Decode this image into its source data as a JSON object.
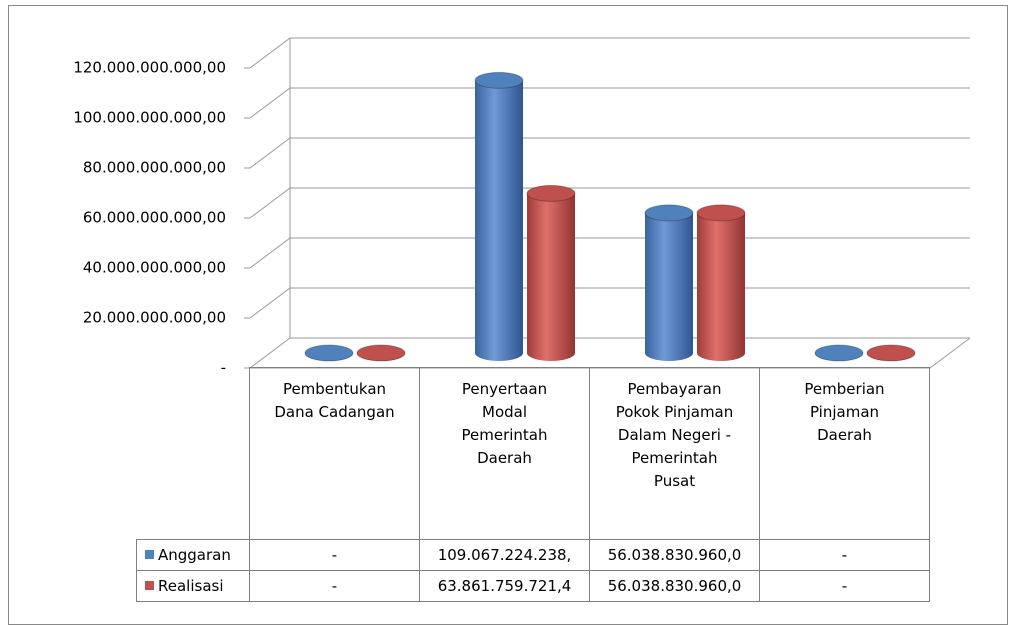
{
  "chart_data": {
    "type": "bar3d",
    "categories": [
      "Pembentukan Dana Cadangan",
      "Penyertaan Modal Pemerintah Daerah",
      "Pembayaran Pokok Pinjaman Dalam Negeri - Pemerintah Pusat",
      "Pemberian Pinjaman Daerah"
    ],
    "series": [
      {
        "name": "Anggaran",
        "color": "#4f81bd",
        "values": [
          0,
          109067224238,
          56038830960,
          0
        ],
        "value_labels": [
          "-",
          "109.067.224.238,",
          "56.038.830.960,0",
          "-"
        ]
      },
      {
        "name": "Realisasi",
        "color": "#c0504d",
        "values": [
          0,
          63861759721.4,
          56038830960,
          0
        ],
        "value_labels": [
          "-",
          "63.861.759.721,4",
          "56.038.830.960,0",
          "-"
        ]
      }
    ],
    "ylim": [
      0,
      120000000000
    ],
    "yticks": [
      {
        "value": 0,
        "label": "-"
      },
      {
        "value": 20000000000,
        "label": "20.000.000.000,00"
      },
      {
        "value": 40000000000,
        "label": "40.000.000.000,00"
      },
      {
        "value": 60000000000,
        "label": "60.000.000.000,00"
      },
      {
        "value": 80000000000,
        "label": "80.000.000.000,00"
      },
      {
        "value": 100000000000,
        "label": "100.000.000.000,00"
      },
      {
        "value": 120000000000,
        "label": "120.000.000.000,00"
      }
    ],
    "grid": true
  }
}
